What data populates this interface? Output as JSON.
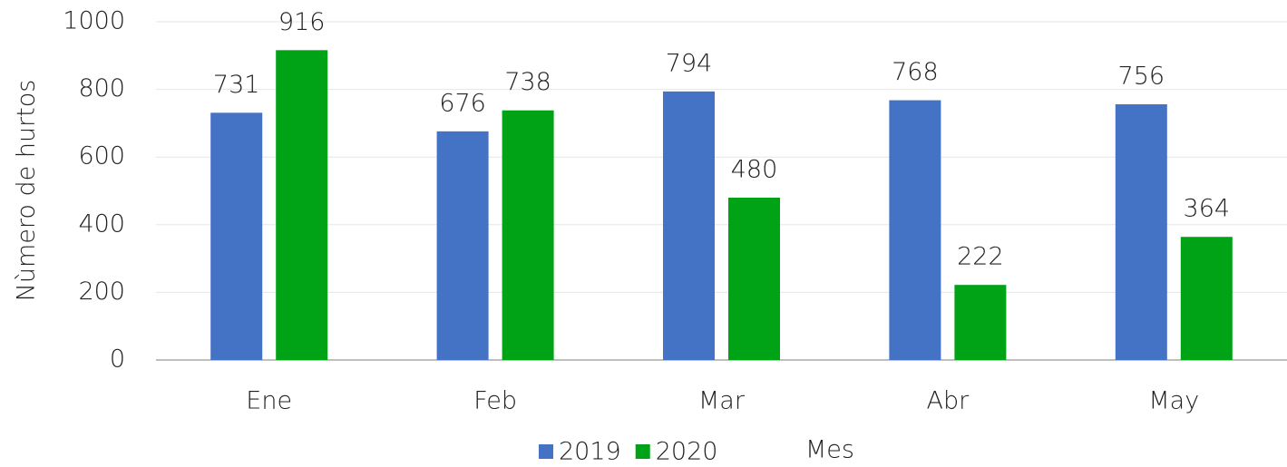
{
  "chart_data": {
    "type": "bar",
    "y_label": "Nùmero de hurtos",
    "x_label": "Mes",
    "categories": [
      "Ene",
      "Feb",
      "Mar",
      "Abr",
      "May"
    ],
    "series": [
      {
        "name": "2019",
        "color": "#4472c4",
        "values": [
          731,
          676,
          794,
          768,
          756
        ]
      },
      {
        "name": "2020",
        "color": "#00a316",
        "values": [
          916,
          738,
          480,
          222,
          364
        ]
      }
    ],
    "ylim": [
      0,
      1000
    ],
    "yticks": [
      0,
      200,
      400,
      600,
      800,
      1000
    ],
    "grid": true
  }
}
